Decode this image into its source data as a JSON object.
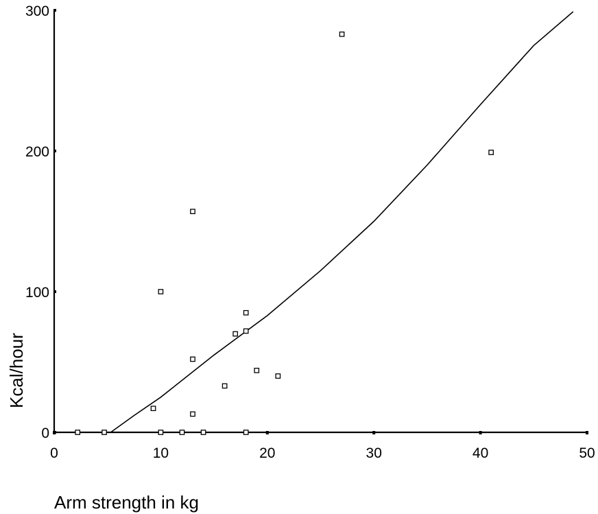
{
  "chart_data": {
    "type": "scatter",
    "xlabel": "Arm strength in kg",
    "ylabel": "Kcal/hour",
    "xlim": [
      0,
      50
    ],
    "ylim": [
      0,
      300
    ],
    "xticks": [
      0,
      10,
      20,
      30,
      40,
      50
    ],
    "yticks": [
      0,
      100,
      200,
      300
    ],
    "grid": false,
    "series": [
      {
        "type": "scatter",
        "marker": "open-square",
        "points": [
          {
            "x": 2.2,
            "y": 0
          },
          {
            "x": 4.7,
            "y": 0
          },
          {
            "x": 9.3,
            "y": 17
          },
          {
            "x": 10,
            "y": 100
          },
          {
            "x": 10,
            "y": 0
          },
          {
            "x": 12,
            "y": 0
          },
          {
            "x": 13,
            "y": 157
          },
          {
            "x": 13,
            "y": 52
          },
          {
            "x": 13,
            "y": 13
          },
          {
            "x": 14,
            "y": 0
          },
          {
            "x": 16,
            "y": 33
          },
          {
            "x": 17,
            "y": 70
          },
          {
            "x": 18,
            "y": 85
          },
          {
            "x": 18,
            "y": 72
          },
          {
            "x": 18,
            "y": 0
          },
          {
            "x": 19,
            "y": 44
          },
          {
            "x": 21,
            "y": 40
          },
          {
            "x": 27,
            "y": 283
          },
          {
            "x": 41,
            "y": 199
          }
        ]
      },
      {
        "type": "line",
        "style": "fitted-curve",
        "points": [
          {
            "x": 5.3,
            "y": 0
          },
          {
            "x": 7.5,
            "y": 12
          },
          {
            "x": 10,
            "y": 25
          },
          {
            "x": 15,
            "y": 55
          },
          {
            "x": 20,
            "y": 83
          },
          {
            "x": 25,
            "y": 115
          },
          {
            "x": 30,
            "y": 150
          },
          {
            "x": 35,
            "y": 190
          },
          {
            "x": 40,
            "y": 233
          },
          {
            "x": 45,
            "y": 275
          },
          {
            "x": 48.7,
            "y": 299
          }
        ]
      }
    ]
  }
}
